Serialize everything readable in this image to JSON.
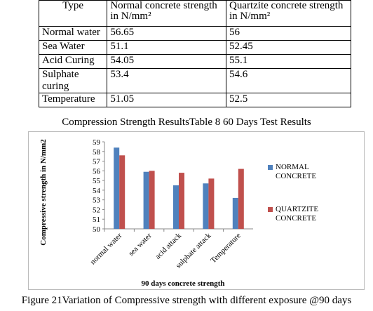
{
  "table": {
    "header": [
      "Type",
      "Normal concrete strength in N/mm²",
      "Quartzite concrete strength in N/mm²"
    ],
    "rows": [
      [
        "Normal water",
        56.65,
        56
      ],
      [
        "Sea Water",
        51.1,
        52.45
      ],
      [
        "Acid Curing",
        54.05,
        55.1
      ],
      [
        "Sulphate curing",
        53.4,
        54.6
      ],
      [
        "Temperature",
        51.05,
        52.5
      ]
    ]
  },
  "table_caption": "Compression Strength ResultsTable 8 60 Days Test Results",
  "chart_data": {
    "type": "bar",
    "categories": [
      "normal water",
      "sea water",
      "acid attack",
      "sulphate attack",
      "Temperature"
    ],
    "series": [
      {
        "name": "NORMAL CONCRETE",
        "color": "#4f81bd",
        "values": [
          58.4,
          55.9,
          54.5,
          54.7,
          53.2
        ]
      },
      {
        "name": "QUARTZITE CONCRETE",
        "color": "#c0504d",
        "values": [
          57.6,
          56.0,
          55.8,
          55.2,
          56.2
        ]
      }
    ],
    "ylim": [
      50,
      59
    ],
    "yticks": [
      50,
      51,
      52,
      53,
      54,
      55,
      56,
      57,
      58,
      59
    ],
    "y_label": "Compressive strength in N/mm2",
    "x_label": "90 days concrete strength",
    "legend": "right"
  },
  "figure_caption": "Figure 21Variation of Compressive strength with different exposure @90 days"
}
